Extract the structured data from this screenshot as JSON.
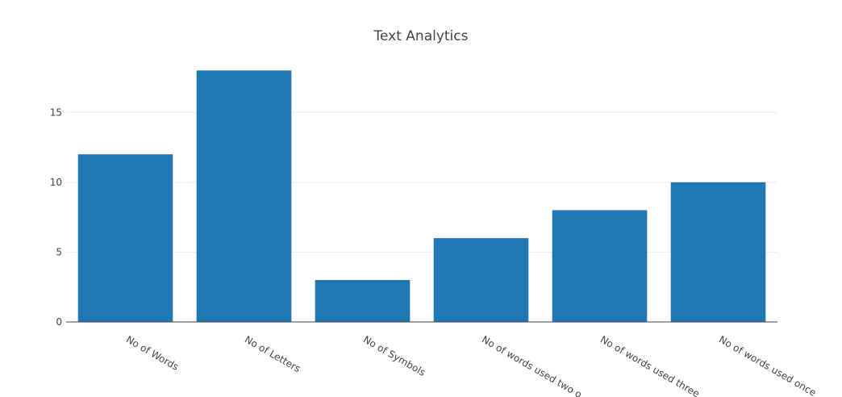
{
  "chart_data": {
    "type": "bar",
    "title": "Text Analytics",
    "categories": [
      "No of Words",
      "No of Letters",
      "No of Symbols",
      "No of words used two o",
      "No of words used three",
      "No of words used once"
    ],
    "values": [
      12,
      18,
      3,
      6,
      8,
      10
    ],
    "ylim": [
      0,
      19
    ],
    "yticks": [
      0,
      5,
      10,
      15
    ],
    "grid": true,
    "colors": {
      "bar": "#1f77b4",
      "grid": "#eeeeee",
      "axis": "#444444",
      "text": "#444444"
    }
  }
}
